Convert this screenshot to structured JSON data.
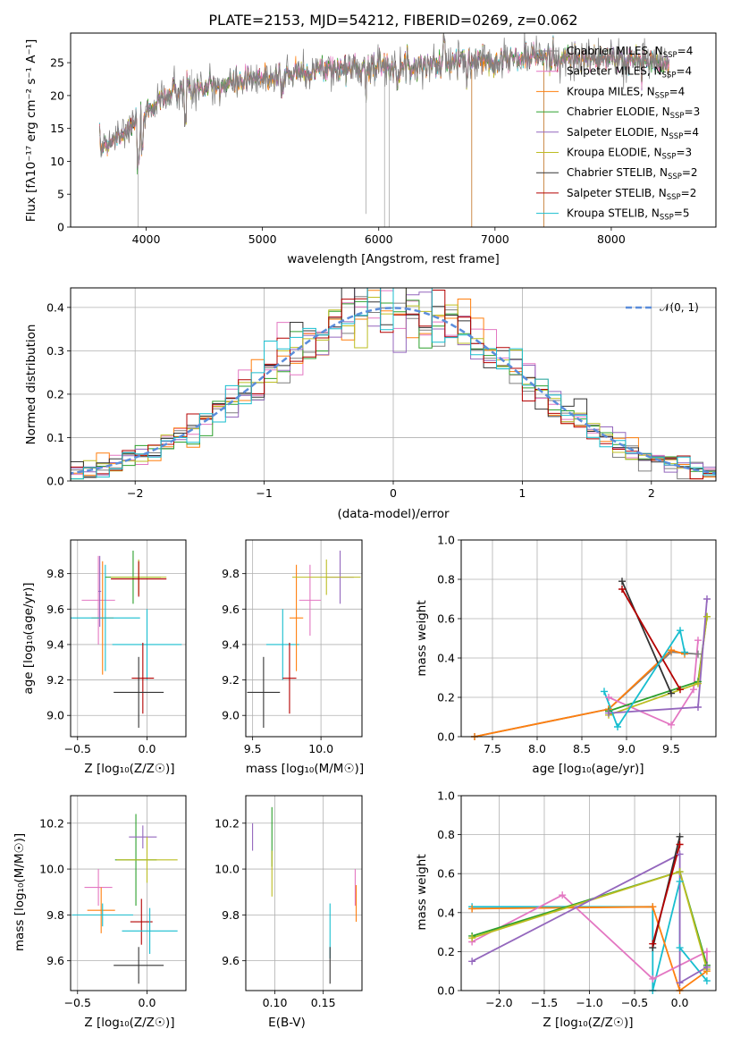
{
  "title": "PLATE=2153, MJD=54212, FIBERID=0269, z=0.062",
  "colors": {
    "Chabrier MILES": "#7f7f7f",
    "Salpeter MILES": "#e377c2",
    "Kroupa MILES": "#ff7f0e",
    "Chabrier ELODIE": "#2ca02c",
    "Salpeter ELODIE": "#9467bd",
    "Kroupa ELODIE": "#bcbd22",
    "Chabrier STELIB": "#333333",
    "Salpeter STELIB": "#b40000",
    "Kroupa STELIB": "#17becf",
    "gaussian": "#5b8ddb"
  },
  "spectrum": {
    "xlabel": "wavelength [Angstrom, rest frame]",
    "ylabel": "Flux [fλ10⁻¹⁷ erg cm⁻² s⁻¹ A⁻¹]",
    "xticks": [
      "4000",
      "5000",
      "6000",
      "7000",
      "8000"
    ],
    "yticks": [
      "0",
      "5",
      "10",
      "15",
      "20",
      "25"
    ],
    "legend": [
      {
        "name": "Chabrier MILES, N",
        "sub": "SSP",
        "val": "=4"
      },
      {
        "name": "Salpeter MILES, N",
        "sub": "SSP",
        "val": "=4"
      },
      {
        "name": "Kroupa MILES, N",
        "sub": "SSP",
        "val": "=4"
      },
      {
        "name": "Chabrier ELODIE, N",
        "sub": "SSP",
        "val": "=3"
      },
      {
        "name": "Salpeter ELODIE, N",
        "sub": "SSP",
        "val": "=4"
      },
      {
        "name": "Kroupa ELODIE, N",
        "sub": "SSP",
        "val": "=3"
      },
      {
        "name": "Chabrier STELIB, N",
        "sub": "SSP",
        "val": "=2"
      },
      {
        "name": "Salpeter STELIB, N",
        "sub": "SSP",
        "val": "=2"
      },
      {
        "name": "Kroupa STELIB, N",
        "sub": "SSP",
        "val": "=5"
      }
    ]
  },
  "residuals": {
    "xlabel": "(data-model)/error",
    "ylabel": "Normed distribution",
    "xticks": [
      "−2",
      "−1",
      "0",
      "1",
      "2"
    ],
    "yticks": [
      "0.0",
      "0.1",
      "0.2",
      "0.3",
      "0.4"
    ],
    "legend_label": "𝒩(0, 1)"
  },
  "panels": {
    "z_age": {
      "xlabel": "Z [log₁₀(Z/Z☉)]",
      "ylabel": "age  [log₁₀(age/yr)]",
      "xticks": [
        "−0.5",
        "0.0"
      ],
      "yticks": [
        "9.0",
        "9.2",
        "9.4",
        "9.6",
        "9.8"
      ]
    },
    "mass_age": {
      "xlabel": "mass [log₁₀(M/M☉)]",
      "xticks": [
        "9.5",
        "10.0"
      ],
      "yticks": [
        "9.0",
        "9.2",
        "9.4",
        "9.6",
        "9.8"
      ]
    },
    "age_weight": {
      "xlabel": "age  [log₁₀(age/yr)]",
      "ylabel": "mass weight",
      "xticks": [
        "7.5",
        "8.0",
        "8.5",
        "9.0",
        "9.5"
      ],
      "yticks": [
        "0.0",
        "0.2",
        "0.4",
        "0.6",
        "0.8",
        "1.0"
      ]
    },
    "z_mass": {
      "xlabel": "Z [log₁₀(Z/Z☉)]",
      "ylabel": "mass [log₁₀(M/M☉)]",
      "xticks": [
        "−0.5",
        "0.0"
      ],
      "yticks": [
        "9.6",
        "9.8",
        "10.0",
        "10.2"
      ]
    },
    "ebv_mass": {
      "xlabel": "E(B-V)",
      "xticks": [
        "0.10",
        "0.15"
      ],
      "yticks": [
        "9.6",
        "9.8",
        "10.0",
        "10.2"
      ]
    },
    "z_weight": {
      "xlabel": "Z [log₁₀(Z/Z☉)]",
      "ylabel": "mass weight",
      "xticks": [
        "−2.0",
        "−1.5",
        "−1.0",
        "−0.5",
        "0.0"
      ],
      "yticks": [
        "0.0",
        "0.2",
        "0.4",
        "0.6",
        "0.8",
        "1.0"
      ]
    }
  },
  "chart_data": [
    {
      "type": "line",
      "title": "PLATE=2153, MJD=54212, FIBERID=0269, z=0.062",
      "xlabel": "wavelength [Angstrom, rest frame]",
      "ylabel": "Flux [fλ10⁻¹⁷ erg cm⁻² s⁻¹ A⁻¹]",
      "xlim": [
        3350,
        8900
      ],
      "ylim": [
        0,
        29.5
      ],
      "continuum": {
        "x": [
          3600,
          3800,
          3950,
          4100,
          4300,
          4500,
          4800,
          5100,
          5500,
          5900,
          6300,
          6600,
          7000,
          7400,
          7800,
          8200,
          8500
        ],
        "y": [
          12.0,
          14.5,
          16.0,
          19.5,
          20.5,
          21.0,
          22.0,
          23.0,
          24.0,
          24.3,
          24.5,
          25.0,
          25.5,
          25.8,
          25.5,
          25.5,
          24.5
        ]
      },
      "grid": false
    },
    {
      "type": "bar",
      "xlabel": "(data-model)/error",
      "ylabel": "Normed distribution",
      "xlim": [
        -2.5,
        2.5
      ],
      "ylim": [
        0,
        0.445
      ],
      "bin_width": 0.1,
      "curve": {
        "name": "𝒩(0, 1)",
        "mean": 0,
        "sigma": 1
      },
      "grid": true,
      "legend": "top-right"
    },
    {
      "type": "scatter",
      "xlabel": "Z [log₁₀(Z/Z☉)]",
      "ylabel": "age  [log₁₀(age/yr)]",
      "xlim": [
        -0.55,
        0.28
      ],
      "ylim": [
        8.88,
        9.99
      ],
      "grid": true,
      "points": [
        {
          "series": "Salpeter MILES",
          "x": -0.35,
          "y": 9.65,
          "xerr": 0.12,
          "yerr": 0.25
        },
        {
          "series": "Kroupa MILES",
          "x": -0.32,
          "y": 9.55,
          "xerr": 0.08,
          "yerr": 0.32
        },
        {
          "series": "Kroupa STELIB",
          "x": -0.3,
          "y": 9.55,
          "xerr": 0.25,
          "yerr": 0.3
        },
        {
          "series": "Salpeter ELODIE",
          "x": -0.34,
          "y": 9.7,
          "xerr": 0.01,
          "yerr": 0.2
        },
        {
          "series": "Chabrier ELODIE",
          "x": -0.1,
          "y": 9.78,
          "xerr": 0.2,
          "yerr": 0.15
        },
        {
          "series": "Kroupa ELODIE",
          "x": -0.06,
          "y": 9.78,
          "xerr": 0.2,
          "yerr": 0.1
        },
        {
          "series": "Salpeter STELIB",
          "x": -0.06,
          "y": 9.77,
          "xerr": 0.2,
          "yerr": 0.1
        },
        {
          "series": "Kroupa STELIB",
          "x": 0.0,
          "y": 9.4,
          "xerr": 0.25,
          "yerr": 0.2
        },
        {
          "series": "Salpeter STELIB",
          "x": -0.03,
          "y": 9.21,
          "xerr": 0.08,
          "yerr": 0.2
        },
        {
          "series": "Chabrier STELIB",
          "x": -0.06,
          "y": 9.13,
          "xerr": 0.18,
          "yerr": 0.2
        }
      ]
    },
    {
      "type": "scatter",
      "xlabel": "mass [log₁₀(M/M☉)]",
      "xlim": [
        9.45,
        10.3
      ],
      "ylim": [
        8.88,
        9.99
      ],
      "grid": true,
      "points": [
        {
          "series": "Chabrier STELIB",
          "x": 9.58,
          "y": 9.13,
          "xerr": 0.12,
          "yerr": 0.2
        },
        {
          "series": "Kroupa STELIB",
          "x": 9.72,
          "y": 9.4,
          "xerr": 0.12,
          "yerr": 0.2
        },
        {
          "series": "Salpeter STELIB",
          "x": 9.77,
          "y": 9.21,
          "xerr": 0.05,
          "yerr": 0.2
        },
        {
          "series": "Salpeter MILES",
          "x": 9.92,
          "y": 9.65,
          "xerr": 0.08,
          "yerr": 0.2
        },
        {
          "series": "Kroupa MILES",
          "x": 9.82,
          "y": 9.55,
          "xerr": 0.05,
          "yerr": 0.3
        },
        {
          "series": "Salpeter ELODIE",
          "x": 10.14,
          "y": 9.78,
          "xerr": 0.1,
          "yerr": 0.15
        },
        {
          "series": "Kroupa ELODIE",
          "x": 10.04,
          "y": 9.78,
          "xerr": 0.25,
          "yerr": 0.1
        }
      ]
    },
    {
      "type": "line",
      "xlabel": "age  [log₁₀(age/yr)]",
      "ylabel": "mass weight",
      "xlim": [
        7.15,
        10.0
      ],
      "ylim": [
        0,
        1.0
      ],
      "grid": true,
      "series": [
        {
          "name": "Chabrier MILES",
          "x": [
            7.3,
            8.8,
            9.5,
            9.8
          ],
          "y": [
            0.0,
            0.14,
            0.43,
            0.42
          ]
        },
        {
          "name": "Kroupa MILES",
          "x": [
            7.3,
            8.8,
            9.5,
            9.65
          ],
          "y": [
            0.0,
            0.14,
            0.44,
            0.42
          ]
        },
        {
          "name": "Salpeter MILES",
          "x": [
            8.8,
            9.5,
            9.75,
            9.8
          ],
          "y": [
            0.2,
            0.06,
            0.24,
            0.49
          ]
        },
        {
          "name": "Chabrier ELODIE",
          "x": [
            8.8,
            9.8,
            9.9
          ],
          "y": [
            0.13,
            0.28,
            0.61
          ]
        },
        {
          "name": "Kroupa ELODIE",
          "x": [
            8.8,
            9.8,
            9.9
          ],
          "y": [
            0.11,
            0.27,
            0.61
          ]
        },
        {
          "name": "Salpeter ELODIE",
          "x": [
            8.8,
            9.8,
            9.9
          ],
          "y": [
            0.12,
            0.15,
            0.7
          ]
        },
        {
          "name": "Chabrier STELIB",
          "x": [
            8.95,
            9.5
          ],
          "y": [
            0.79,
            0.22
          ]
        },
        {
          "name": "Salpeter STELIB",
          "x": [
            8.95,
            9.6
          ],
          "y": [
            0.75,
            0.24
          ]
        },
        {
          "name": "Kroupa STELIB",
          "x": [
            8.75,
            8.9,
            9.6,
            9.65
          ],
          "y": [
            0.23,
            0.05,
            0.54,
            0.43
          ]
        }
      ]
    },
    {
      "type": "scatter",
      "xlabel": "Z [log₁₀(Z/Z☉)]",
      "ylabel": "mass [log₁₀(M/M☉)]",
      "xlim": [
        -0.55,
        0.28
      ],
      "ylim": [
        9.47,
        10.32
      ],
      "grid": true,
      "points": [
        {
          "series": "Salpeter MILES",
          "x": -0.35,
          "y": 9.92,
          "xerr": 0.1,
          "yerr": 0.08
        },
        {
          "series": "Kroupa MILES",
          "x": -0.33,
          "y": 9.82,
          "xerr": 0.1,
          "yerr": 0.1
        },
        {
          "series": "Kroupa STELIB",
          "x": -0.32,
          "y": 9.8,
          "xerr": 0.22,
          "yerr": 0.05
        },
        {
          "series": "Chabrier ELODIE",
          "x": -0.08,
          "y": 10.04,
          "xerr": 0.15,
          "yerr": 0.2
        },
        {
          "series": "Salpeter ELODIE",
          "x": -0.03,
          "y": 10.14,
          "xerr": 0.1,
          "yerr": 0.05
        },
        {
          "series": "Kroupa ELODIE",
          "x": 0.0,
          "y": 10.04,
          "xerr": 0.22,
          "yerr": 0.1
        },
        {
          "series": "Salpeter STELIB",
          "x": -0.04,
          "y": 9.77,
          "xerr": 0.08,
          "yerr": 0.1
        },
        {
          "series": "Kroupa STELIB",
          "x": 0.02,
          "y": 9.73,
          "xerr": 0.2,
          "yerr": 0.1
        },
        {
          "series": "Chabrier STELIB",
          "x": -0.06,
          "y": 9.58,
          "xerr": 0.18,
          "yerr": 0.08
        }
      ]
    },
    {
      "type": "scatter",
      "xlabel": "E(B-V)",
      "xlim": [
        0.07,
        0.19
      ],
      "ylim": [
        9.47,
        10.32
      ],
      "grid": true,
      "points": [
        {
          "series": "Salpeter ELODIE",
          "x": 0.077,
          "y": 10.14,
          "yerr": 0.06
        },
        {
          "series": "Chabrier ELODIE",
          "x": 0.097,
          "y": 10.14,
          "yerr": 0.13
        },
        {
          "series": "Kroupa ELODIE",
          "x": 0.097,
          "y": 9.98,
          "yerr": 0.1
        },
        {
          "series": "Kroupa STELIB",
          "x": 0.157,
          "y": 9.73,
          "yerr": 0.12
        },
        {
          "series": "Chabrier STELIB",
          "x": 0.157,
          "y": 9.58,
          "yerr": 0.08
        },
        {
          "series": "Salpeter MILES",
          "x": 0.183,
          "y": 9.92,
          "yerr": 0.08
        },
        {
          "series": "Kroupa MILES",
          "x": 0.184,
          "y": 9.85,
          "yerr": 0.08
        }
      ]
    },
    {
      "type": "line",
      "xlabel": "Z [log₁₀(Z/Z☉)]",
      "ylabel": "mass weight",
      "xlim": [
        -2.42,
        0.4
      ],
      "ylim": [
        0,
        1.0
      ],
      "grid": true,
      "series": [
        {
          "name": "Kroupa STELIB",
          "x": [
            -2.3,
            -0.3,
            -0.3,
            0.0,
            0.0,
            0.3
          ],
          "y": [
            0.43,
            0.43,
            0.0,
            0.56,
            0.22,
            0.05
          ]
        },
        {
          "name": "Kroupa MILES",
          "x": [
            -2.3,
            -0.3,
            0.0,
            0.3
          ],
          "y": [
            0.42,
            0.43,
            0.0,
            0.1
          ]
        },
        {
          "name": "Salpeter MILES",
          "x": [
            -2.3,
            -1.3,
            -0.3,
            0.3,
            0.3
          ],
          "y": [
            0.25,
            0.49,
            0.06,
            0.2,
            0.13
          ]
        },
        {
          "name": "Chabrier ELODIE",
          "x": [
            -2.3,
            0.0,
            0.3
          ],
          "y": [
            0.28,
            0.61,
            0.13
          ]
        },
        {
          "name": "Kroupa ELODIE",
          "x": [
            -2.3,
            0.0,
            0.3
          ],
          "y": [
            0.27,
            0.61,
            0.11
          ]
        },
        {
          "name": "Salpeter ELODIE",
          "x": [
            -2.3,
            0.0,
            0.0,
            0.3
          ],
          "y": [
            0.15,
            0.7,
            0.04,
            0.12
          ]
        },
        {
          "name": "Chabrier STELIB",
          "x": [
            -0.3,
            0.0
          ],
          "y": [
            0.22,
            0.79
          ]
        },
        {
          "name": "Salpeter STELIB",
          "x": [
            -0.3,
            0.0
          ],
          "y": [
            0.24,
            0.75
          ]
        }
      ]
    }
  ]
}
